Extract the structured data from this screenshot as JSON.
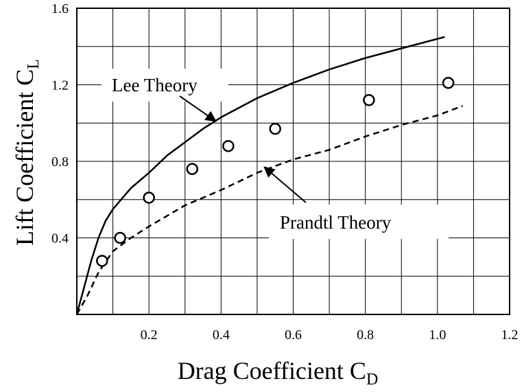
{
  "chart_data": {
    "type": "line",
    "xlabel": {
      "main": "Drag Coefficient C",
      "sub": "D"
    },
    "ylabel": {
      "main": "Lift Coefficient C",
      "sub": "L"
    },
    "xlim": [
      0,
      1.2
    ],
    "ylim": [
      0,
      1.6
    ],
    "x_ticks": [
      "0.2",
      "0.4",
      "0.6",
      "0.8",
      "1.0",
      "1.2"
    ],
    "y_ticks": [
      "0.4",
      "0.8",
      "1.2",
      "1.6"
    ],
    "grid": true,
    "series": [
      {
        "name": "Lee Theory",
        "style": "solid",
        "points": [
          [
            0,
            0
          ],
          [
            0.02,
            0.14
          ],
          [
            0.04,
            0.28
          ],
          [
            0.06,
            0.4
          ],
          [
            0.08,
            0.49
          ],
          [
            0.1,
            0.55
          ],
          [
            0.15,
            0.66
          ],
          [
            0.2,
            0.74
          ],
          [
            0.25,
            0.83
          ],
          [
            0.3,
            0.9
          ],
          [
            0.35,
            0.97
          ],
          [
            0.4,
            1.03
          ],
          [
            0.45,
            1.08
          ],
          [
            0.5,
            1.13
          ],
          [
            0.6,
            1.21
          ],
          [
            0.7,
            1.28
          ],
          [
            0.8,
            1.34
          ],
          [
            0.9,
            1.39
          ],
          [
            1.0,
            1.44
          ],
          [
            1.02,
            1.45
          ]
        ]
      },
      {
        "name": "Prandtl Theory",
        "style": "dashed",
        "points": [
          [
            0,
            0
          ],
          [
            0.03,
            0.1
          ],
          [
            0.06,
            0.22
          ],
          [
            0.1,
            0.33
          ],
          [
            0.15,
            0.4
          ],
          [
            0.2,
            0.46
          ],
          [
            0.3,
            0.57
          ],
          [
            0.4,
            0.65
          ],
          [
            0.5,
            0.74
          ],
          [
            0.6,
            0.81
          ],
          [
            0.7,
            0.86
          ],
          [
            0.8,
            0.93
          ],
          [
            0.9,
            0.99
          ],
          [
            1.0,
            1.04
          ],
          [
            1.07,
            1.09
          ]
        ]
      },
      {
        "name": "",
        "style": "markers",
        "points": [
          [
            0.07,
            0.28
          ],
          [
            0.12,
            0.4
          ],
          [
            0.2,
            0.61
          ],
          [
            0.32,
            0.76
          ],
          [
            0.42,
            0.88
          ],
          [
            0.55,
            0.97
          ],
          [
            0.81,
            1.12
          ],
          [
            1.03,
            1.21
          ]
        ]
      }
    ],
    "annotations": [
      {
        "text": "Lee Theory",
        "series": 0,
        "arrow_to": [
          0.385,
          1.01
        ],
        "position": "upper-left"
      },
      {
        "text": "Prandtl Theory",
        "series": 1,
        "arrow_to": [
          0.52,
          0.77
        ],
        "position": "lower-right"
      }
    ],
    "colors": {
      "ink": "#000000",
      "grid": "#000000",
      "background": "#ffffff"
    }
  }
}
